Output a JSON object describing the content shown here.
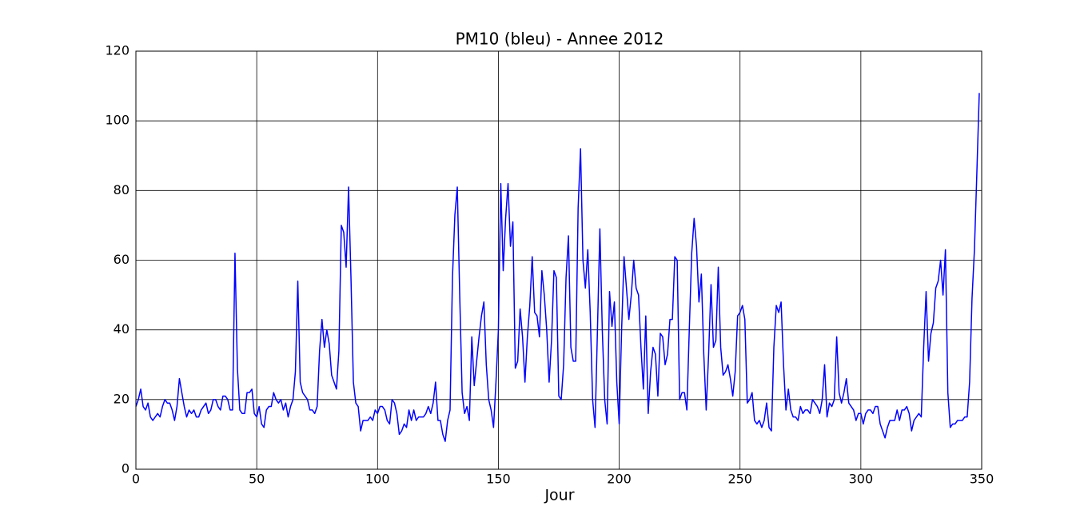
{
  "chart_data": {
    "type": "line",
    "title": "PM10 (bleu) - Annee 2012",
    "x_label": "Jour",
    "color": "#0000ff",
    "grid": true,
    "xlim": [
      0,
      350
    ],
    "xticks": [
      0,
      50,
      100,
      150,
      200,
      250,
      300,
      350
    ],
    "ylim": [
      0,
      120
    ],
    "yticks": [
      0,
      20,
      40,
      60,
      80,
      100,
      120
    ],
    "x": [
      0,
      1,
      2,
      3,
      4,
      5,
      6,
      7,
      8,
      9,
      10,
      11,
      12,
      13,
      14,
      15,
      16,
      17,
      18,
      19,
      20,
      21,
      22,
      23,
      24,
      25,
      26,
      27,
      28,
      29,
      30,
      31,
      32,
      33,
      34,
      35,
      36,
      37,
      38,
      39,
      40,
      41,
      42,
      43,
      44,
      45,
      46,
      47,
      48,
      49,
      50,
      51,
      52,
      53,
      54,
      55,
      56,
      57,
      58,
      59,
      60,
      61,
      62,
      63,
      64,
      65,
      66,
      67,
      68,
      69,
      70,
      71,
      72,
      73,
      74,
      75,
      76,
      77,
      78,
      79,
      80,
      81,
      82,
      83,
      84,
      85,
      86,
      87,
      88,
      89,
      90,
      91,
      92,
      93,
      94,
      95,
      96,
      97,
      98,
      99,
      100,
      101,
      102,
      103,
      104,
      105,
      106,
      107,
      108,
      109,
      110,
      111,
      112,
      113,
      114,
      115,
      116,
      117,
      118,
      119,
      120,
      121,
      122,
      123,
      124,
      125,
      126,
      127,
      128,
      129,
      130,
      131,
      132,
      133,
      134,
      135,
      136,
      137,
      138,
      139,
      140,
      141,
      142,
      143,
      144,
      145,
      146,
      147,
      148,
      149,
      150,
      151,
      152,
      153,
      154,
      155,
      156,
      157,
      158,
      159,
      160,
      161,
      162,
      163,
      164,
      165,
      166,
      167,
      168,
      169,
      170,
      171,
      172,
      173,
      174,
      175,
      176,
      177,
      178,
      179,
      180,
      181,
      182,
      183,
      184,
      185,
      186,
      187,
      188,
      189,
      190,
      191,
      192,
      193,
      194,
      195,
      196,
      197,
      198,
      199,
      200,
      201,
      202,
      203,
      204,
      205,
      206,
      207,
      208,
      209,
      210,
      211,
      212,
      213,
      214,
      215,
      216,
      217,
      218,
      219,
      220,
      221,
      222,
      223,
      224,
      225,
      226,
      227,
      228,
      229,
      230,
      231,
      232,
      233,
      234,
      235,
      236,
      237,
      238,
      239,
      240,
      241,
      242,
      243,
      244,
      245,
      246,
      247,
      248,
      249,
      250,
      251,
      252,
      253,
      254,
      255,
      256,
      257,
      258,
      259,
      260,
      261,
      262,
      263,
      264,
      265,
      266,
      267,
      268,
      269,
      270,
      271,
      272,
      273,
      274,
      275,
      276,
      277,
      278,
      279,
      280,
      281,
      282,
      283,
      284,
      285,
      286,
      287,
      288,
      289,
      290,
      291,
      292,
      293,
      294,
      295,
      296,
      297,
      298,
      299,
      300,
      301,
      302,
      303,
      304,
      305,
      306,
      307,
      308,
      309,
      310,
      311,
      312,
      313,
      314,
      315,
      316,
      317,
      318,
      319,
      320,
      321,
      322,
      323,
      324,
      325,
      326,
      327,
      328,
      329,
      330,
      331,
      332,
      333,
      334,
      335,
      336,
      337,
      338,
      339,
      340,
      341,
      342,
      343,
      344,
      345,
      346,
      347,
      348,
      349
    ],
    "values": [
      18,
      20,
      23,
      18,
      17,
      19,
      15,
      14,
      15,
      16,
      15,
      18,
      20,
      19,
      19,
      17,
      14,
      18,
      26,
      22,
      18,
      15,
      17,
      16,
      17,
      15,
      15,
      17,
      18,
      19,
      16,
      17,
      20,
      20,
      18,
      17,
      21,
      21,
      20,
      17,
      17,
      62,
      29,
      17,
      16,
      16,
      22,
      22,
      23,
      16,
      15,
      18,
      13,
      12,
      17,
      18,
      18,
      22,
      20,
      19,
      20,
      17,
      19,
      15,
      18,
      20,
      28,
      54,
      25,
      22,
      21,
      20,
      17,
      17,
      16,
      18,
      34,
      43,
      35,
      40,
      36,
      27,
      25,
      23,
      34,
      70,
      68,
      58,
      81,
      55,
      25,
      19,
      18,
      11,
      14,
      14,
      14,
      15,
      14,
      17,
      16,
      18,
      18,
      17,
      14,
      13,
      20,
      19,
      16,
      10,
      11,
      13,
      12,
      17,
      14,
      17,
      14,
      15,
      15,
      15,
      16,
      18,
      16,
      19,
      25,
      14,
      14,
      10,
      8,
      14,
      17,
      55,
      73,
      81,
      50,
      22,
      16,
      18,
      14,
      38,
      24,
      31,
      38,
      44,
      48,
      30,
      20,
      17,
      12,
      25,
      40,
      82,
      57,
      72,
      82,
      64,
      71,
      29,
      31,
      46,
      38,
      25,
      38,
      47,
      61,
      45,
      44,
      38,
      57,
      50,
      40,
      25,
      37,
      57,
      55,
      21,
      20,
      30,
      55,
      67,
      35,
      31,
      31,
      75,
      92,
      60,
      52,
      63,
      45,
      20,
      12,
      40,
      69,
      40,
      20,
      13,
      51,
      41,
      48,
      25,
      13,
      40,
      61,
      52,
      43,
      50,
      60,
      52,
      50,
      35,
      23,
      44,
      16,
      28,
      35,
      33,
      21,
      39,
      38,
      30,
      33,
      43,
      43,
      61,
      60,
      20,
      22,
      22,
      17,
      40,
      62,
      72,
      64,
      48,
      56,
      33,
      17,
      33,
      53,
      35,
      37,
      58,
      35,
      27,
      28,
      30,
      26,
      21,
      28,
      44,
      45,
      47,
      43,
      19,
      20,
      22,
      14,
      13,
      14,
      12,
      14,
      19,
      12,
      11,
      35,
      47,
      45,
      48,
      30,
      17,
      23,
      17,
      15,
      15,
      14,
      18,
      16,
      17,
      17,
      16,
      20,
      19,
      18,
      16,
      20,
      30,
      15,
      19,
      18,
      20,
      38,
      22,
      19,
      22,
      26,
      19,
      18,
      17,
      14,
      16,
      16,
      13,
      16,
      17,
      17,
      16,
      18,
      18,
      13,
      11,
      9,
      12,
      14,
      14,
      14,
      17,
      14,
      17,
      17,
      18,
      16,
      11,
      14,
      15,
      16,
      15,
      35,
      51,
      31,
      39,
      42,
      52,
      54,
      60,
      50,
      63,
      22,
      12,
      13,
      13,
      14,
      14,
      14,
      15,
      15,
      25,
      49,
      63,
      85,
      108
    ]
  }
}
